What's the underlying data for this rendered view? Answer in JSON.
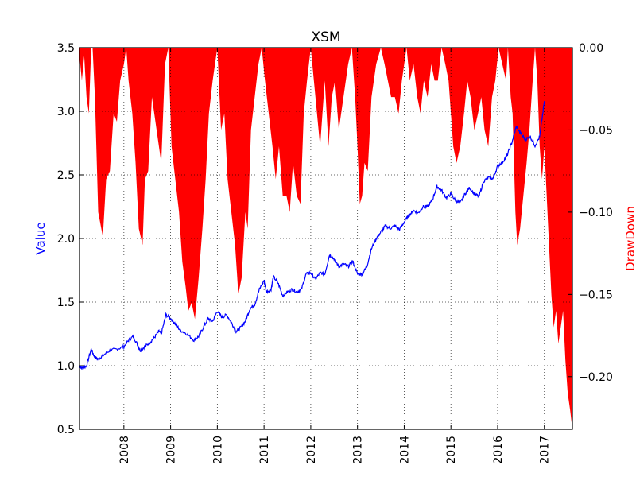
{
  "chart_data": {
    "type": "line",
    "title": "XSM",
    "ylabel_left": "Value",
    "ylabel_right": "DrawDown",
    "ylim_left": [
      0.5,
      3.5
    ],
    "ylim_right": [
      -0.232,
      0.0
    ],
    "xlim": [
      2007.05,
      2017.6
    ],
    "grid": true,
    "yticks_left": [
      "0.5",
      "1.0",
      "1.5",
      "2.0",
      "2.5",
      "3.0",
      "3.5"
    ],
    "yticks_right": [
      "−0.20",
      "−0.15",
      "−0.10",
      "−0.05",
      "0.00"
    ],
    "xticks": [
      "2008",
      "2009",
      "2010",
      "2011",
      "2012",
      "2013",
      "2014",
      "2015",
      "2016",
      "2017"
    ],
    "colors": {
      "value": "#0000ff",
      "drawdown": "#ff0000"
    },
    "series": [
      {
        "name": "Value",
        "axis": "left",
        "x": [
          2007.05,
          2007.1,
          2007.2,
          2007.3,
          2007.37,
          2007.45,
          2007.55,
          2007.7,
          2007.85,
          2008.0,
          2008.1,
          2008.2,
          2008.3,
          2008.35,
          2008.45,
          2008.55,
          2008.65,
          2008.75,
          2008.8,
          2008.9,
          2009.0,
          2009.1,
          2009.2,
          2009.35,
          2009.5,
          2009.6,
          2009.7,
          2009.8,
          2009.9,
          2010.0,
          2010.1,
          2010.2,
          2010.3,
          2010.4,
          2010.5,
          2010.6,
          2010.7,
          2010.8,
          2010.9,
          2011.0,
          2011.05,
          2011.15,
          2011.2,
          2011.3,
          2011.4,
          2011.5,
          2011.6,
          2011.7,
          2011.8,
          2011.9,
          2012.0,
          2012.1,
          2012.2,
          2012.3,
          2012.4,
          2012.5,
          2012.6,
          2012.7,
          2012.8,
          2012.9,
          2013.0,
          2013.1,
          2013.2,
          2013.3,
          2013.4,
          2013.5,
          2013.6,
          2013.7,
          2013.8,
          2013.9,
          2014.0,
          2014.1,
          2014.2,
          2014.3,
          2014.4,
          2014.5,
          2014.6,
          2014.7,
          2014.8,
          2014.9,
          2015.0,
          2015.1,
          2015.2,
          2015.3,
          2015.4,
          2015.5,
          2015.6,
          2015.7,
          2015.8,
          2015.9,
          2016.0,
          2016.1,
          2016.2,
          2016.3,
          2016.4,
          2016.5,
          2016.6,
          2016.7,
          2016.8,
          2016.9,
          2017.0
        ],
        "y": [
          1.0,
          0.98,
          1.0,
          1.13,
          1.07,
          1.05,
          1.08,
          1.12,
          1.13,
          1.15,
          1.2,
          1.23,
          1.16,
          1.12,
          1.15,
          1.18,
          1.22,
          1.27,
          1.25,
          1.4,
          1.37,
          1.33,
          1.28,
          1.25,
          1.2,
          1.23,
          1.3,
          1.37,
          1.35,
          1.43,
          1.38,
          1.4,
          1.34,
          1.27,
          1.3,
          1.35,
          1.45,
          1.48,
          1.6,
          1.67,
          1.58,
          1.6,
          1.7,
          1.65,
          1.55,
          1.58,
          1.6,
          1.58,
          1.6,
          1.72,
          1.73,
          1.68,
          1.73,
          1.72,
          1.87,
          1.84,
          1.78,
          1.8,
          1.78,
          1.82,
          1.72,
          1.72,
          1.78,
          1.92,
          2.0,
          2.05,
          2.1,
          2.08,
          2.1,
          2.07,
          2.13,
          2.18,
          2.22,
          2.2,
          2.25,
          2.25,
          2.3,
          2.41,
          2.38,
          2.32,
          2.35,
          2.3,
          2.28,
          2.35,
          2.4,
          2.35,
          2.33,
          2.45,
          2.48,
          2.47,
          2.57,
          2.6,
          2.65,
          2.75,
          2.88,
          2.82,
          2.78,
          2.8,
          2.73,
          2.8,
          3.08
        ]
      },
      {
        "name": "DrawDown",
        "axis": "right",
        "x": [
          2007.05,
          2007.1,
          2007.15,
          2007.2,
          2007.25,
          2007.3,
          2007.33,
          2007.38,
          2007.45,
          2007.55,
          2007.62,
          2007.7,
          2007.78,
          2007.85,
          2007.92,
          2008.0,
          2008.05,
          2008.1,
          2008.18,
          2008.25,
          2008.32,
          2008.4,
          2008.45,
          2008.52,
          2008.6,
          2008.7,
          2008.8,
          2008.88,
          2008.95,
          2009.02,
          2009.1,
          2009.18,
          2009.25,
          2009.32,
          2009.38,
          2009.45,
          2009.52,
          2009.6,
          2009.68,
          2009.75,
          2009.82,
          2009.9,
          2010.0,
          2010.08,
          2010.15,
          2010.22,
          2010.3,
          2010.38,
          2010.45,
          2010.52,
          2010.6,
          2010.65,
          2010.72,
          2010.8,
          2010.88,
          2010.95,
          2011.02,
          2011.1,
          2011.18,
          2011.25,
          2011.32,
          2011.4,
          2011.48,
          2011.55,
          2011.62,
          2011.7,
          2011.78,
          2011.85,
          2011.92,
          2012.0,
          2012.1,
          2012.2,
          2012.3,
          2012.38,
          2012.45,
          2012.52,
          2012.6,
          2012.7,
          2012.8,
          2012.88,
          2012.95,
          2013.0,
          2013.05,
          2013.1,
          2013.15,
          2013.22,
          2013.3,
          2013.4,
          2013.5,
          2013.58,
          2013.65,
          2013.72,
          2013.8,
          2013.88,
          2013.95,
          2014.05,
          2014.12,
          2014.2,
          2014.28,
          2014.35,
          2014.42,
          2014.5,
          2014.58,
          2014.65,
          2014.72,
          2014.8,
          2014.88,
          2014.95,
          2015.0,
          2015.05,
          2015.12,
          2015.2,
          2015.28,
          2015.35,
          2015.42,
          2015.5,
          2015.58,
          2015.65,
          2015.72,
          2015.8,
          2015.88,
          2015.95,
          2016.02,
          2016.1,
          2016.18,
          2016.22,
          2016.28,
          2016.32,
          2016.38,
          2016.42,
          2016.48,
          2016.55,
          2016.62,
          2016.68,
          2016.75,
          2016.8,
          2016.85,
          2016.9,
          2016.95,
          2017.0,
          2017.05,
          2017.1,
          2017.15,
          2017.2,
          2017.25,
          2017.3,
          2017.35,
          2017.4,
          2017.45,
          2017.5,
          2017.55,
          2017.6
        ],
        "y": [
          -0.005,
          -0.02,
          -0.005,
          -0.03,
          -0.04,
          0.0,
          0.0,
          -0.03,
          -0.1,
          -0.115,
          -0.08,
          -0.075,
          -0.04,
          -0.045,
          -0.02,
          -0.01,
          0.0,
          -0.02,
          -0.04,
          -0.07,
          -0.11,
          -0.12,
          -0.08,
          -0.075,
          -0.03,
          -0.05,
          -0.07,
          -0.01,
          0.0,
          -0.06,
          -0.08,
          -0.1,
          -0.13,
          -0.145,
          -0.16,
          -0.155,
          -0.165,
          -0.14,
          -0.11,
          -0.08,
          -0.04,
          -0.02,
          0.0,
          -0.05,
          -0.04,
          -0.08,
          -0.1,
          -0.12,
          -0.15,
          -0.14,
          -0.1,
          -0.11,
          -0.05,
          -0.03,
          -0.01,
          0.0,
          -0.02,
          -0.04,
          -0.06,
          -0.08,
          -0.06,
          -0.09,
          -0.09,
          -0.1,
          -0.07,
          -0.09,
          -0.095,
          -0.04,
          -0.02,
          0.0,
          -0.03,
          -0.06,
          -0.02,
          -0.06,
          -0.03,
          -0.02,
          -0.05,
          -0.03,
          -0.01,
          0.0,
          -0.03,
          -0.06,
          -0.095,
          -0.09,
          -0.07,
          -0.075,
          -0.03,
          -0.01,
          0.0,
          -0.01,
          -0.02,
          -0.03,
          -0.03,
          -0.04,
          -0.02,
          0.0,
          -0.02,
          -0.01,
          -0.03,
          -0.04,
          -0.02,
          -0.03,
          -0.01,
          -0.02,
          -0.02,
          0.0,
          -0.01,
          -0.02,
          -0.04,
          -0.06,
          -0.07,
          -0.06,
          -0.04,
          -0.02,
          -0.03,
          -0.05,
          -0.04,
          -0.03,
          -0.05,
          -0.06,
          -0.03,
          -0.02,
          0.0,
          -0.01,
          -0.02,
          0.0,
          -0.03,
          -0.04,
          -0.1,
          -0.12,
          -0.11,
          -0.09,
          -0.07,
          -0.05,
          -0.02,
          0.0,
          -0.02,
          -0.06,
          -0.08,
          -0.06,
          -0.09,
          -0.12,
          -0.15,
          -0.17,
          -0.16,
          -0.18,
          -0.17,
          -0.16,
          -0.19,
          -0.21,
          -0.22,
          -0.232
        ]
      }
    ]
  }
}
